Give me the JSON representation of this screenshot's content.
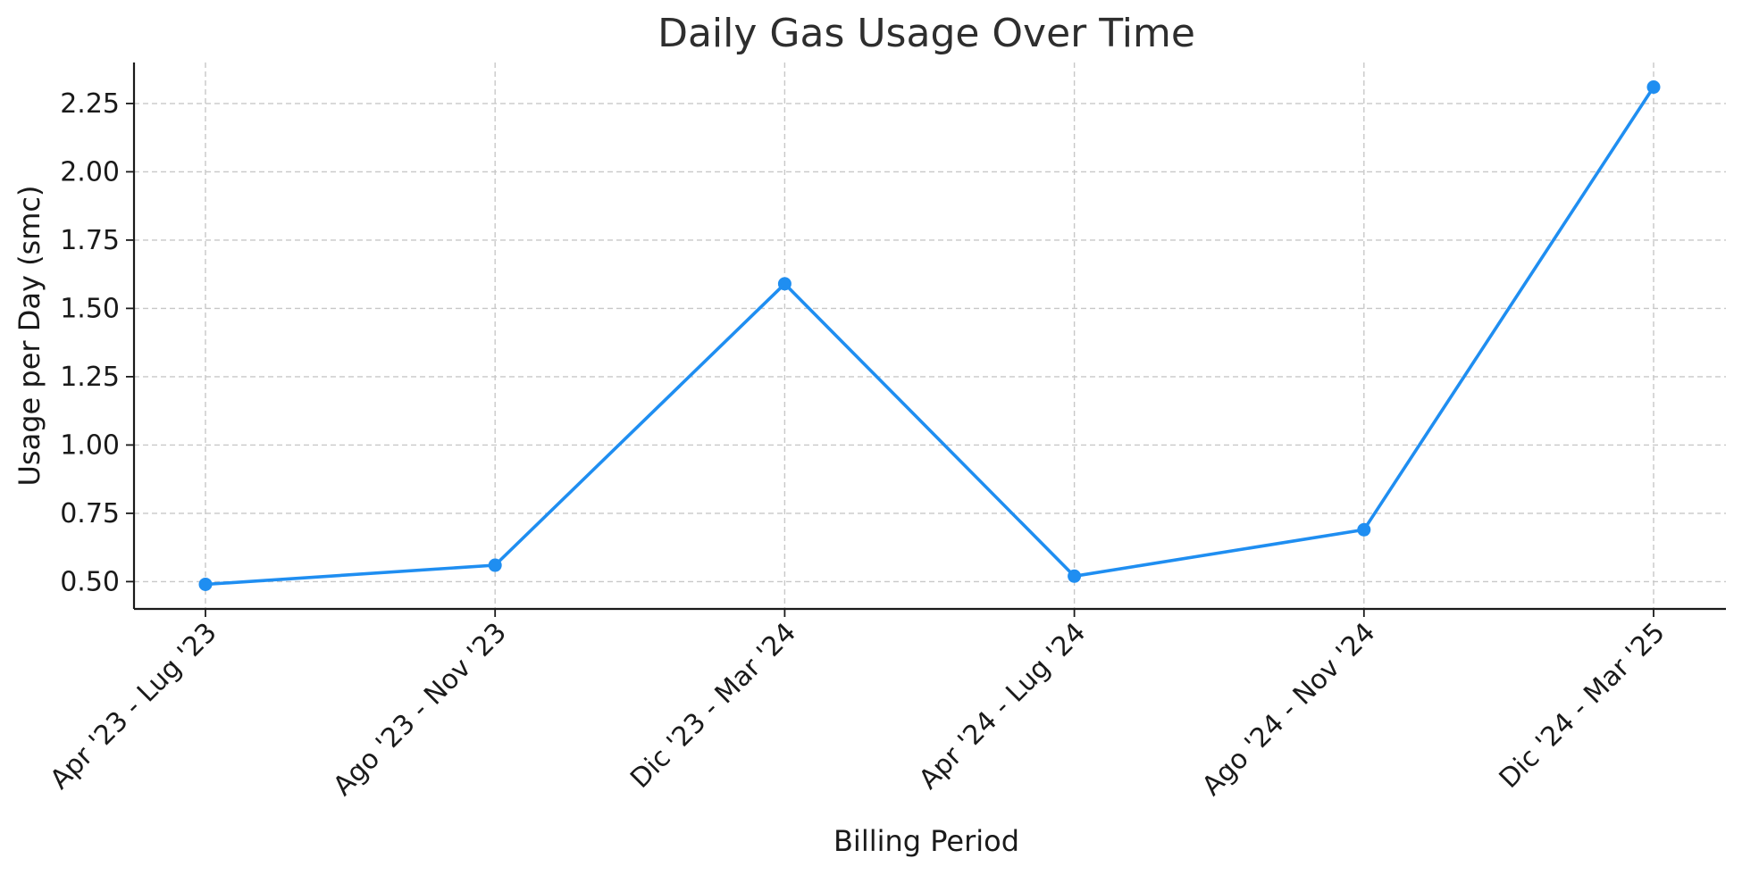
{
  "chart_data": {
    "type": "line",
    "title": "Daily Gas Usage Over Time",
    "xlabel": "Billing Period",
    "ylabel": "Usage per Day (smc)",
    "categories": [
      "Apr '23 - Lug '23",
      "Ago '23 - Nov '23",
      "Dic '23 - Mar '24",
      "Apr '24 - Lug '24",
      "Ago '24 - Nov '24",
      "Dic '24 - Mar '25"
    ],
    "series": [
      {
        "values": [
          0.49,
          0.56,
          1.59,
          0.52,
          0.69,
          2.31
        ]
      }
    ],
    "y_ticks": [
      "0.50",
      "0.75",
      "1.00",
      "1.25",
      "1.50",
      "1.75",
      "2.00",
      "2.25"
    ],
    "ylim": [
      0.4,
      2.4
    ],
    "grid": true,
    "marker": "circle",
    "colors": {
      "series": "#1f8ef1",
      "grid": "#c8c8c8",
      "axis": "#1a1a1a"
    }
  }
}
